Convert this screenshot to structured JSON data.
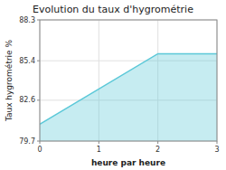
{
  "chart_data": {
    "type": "area",
    "title": "Evolution du taux d'hygrométrie",
    "xlabel": "heure par heure",
    "ylabel": "Taux hygrométrie %",
    "x": [
      0,
      2,
      3
    ],
    "values": [
      80.9,
      85.9,
      85.9
    ],
    "color": "#5bc8d8",
    "xlim": [
      0,
      3
    ],
    "ylim": [
      79.7,
      88.3
    ],
    "xticks": [
      0,
      1,
      2,
      3
    ],
    "yticks": [
      79.7,
      82.6,
      85.4,
      88.3
    ],
    "grid": true
  }
}
